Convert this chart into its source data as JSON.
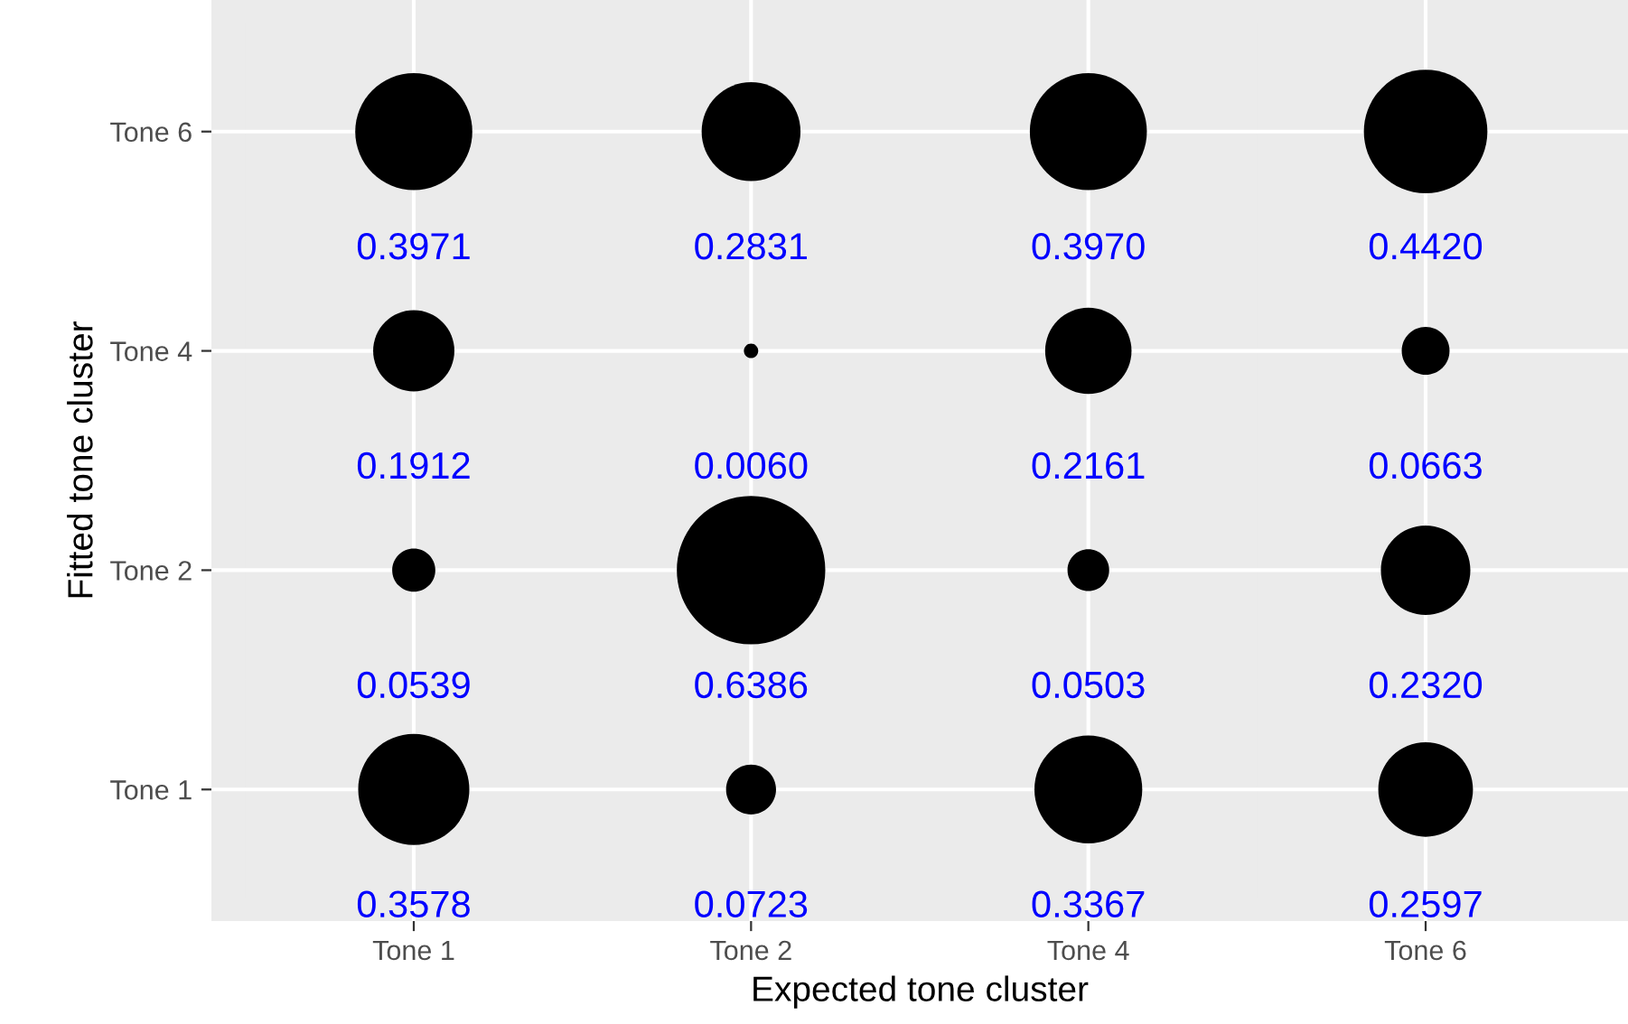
{
  "chart_data": {
    "type": "heatmap",
    "xlabel": "Expected tone cluster",
    "ylabel": "Fitted tone cluster",
    "categories": [
      "Tone 1",
      "Tone 2",
      "Tone 4",
      "Tone 6"
    ],
    "y_categories": [
      "Tone 6",
      "Tone 4",
      "Tone 2",
      "Tone 1"
    ],
    "cells": [
      [
        0.3971,
        0.2831,
        0.397,
        0.442
      ],
      [
        0.1912,
        0.006,
        0.2161,
        0.0663
      ],
      [
        0.0539,
        0.6386,
        0.0503,
        0.232
      ],
      [
        0.3578,
        0.0723,
        0.3367,
        0.2597
      ]
    ],
    "cell_labels": [
      [
        "0.3971",
        "0.2831",
        "0.3970",
        "0.4420"
      ],
      [
        "0.1912",
        "0.0060",
        "0.2161",
        "0.0663"
      ],
      [
        "0.0539",
        "0.6386",
        "0.0503",
        "0.2320"
      ],
      [
        "0.3578",
        "0.0723",
        "0.3367",
        "0.2597"
      ]
    ],
    "color": "#000000",
    "grid": true
  }
}
